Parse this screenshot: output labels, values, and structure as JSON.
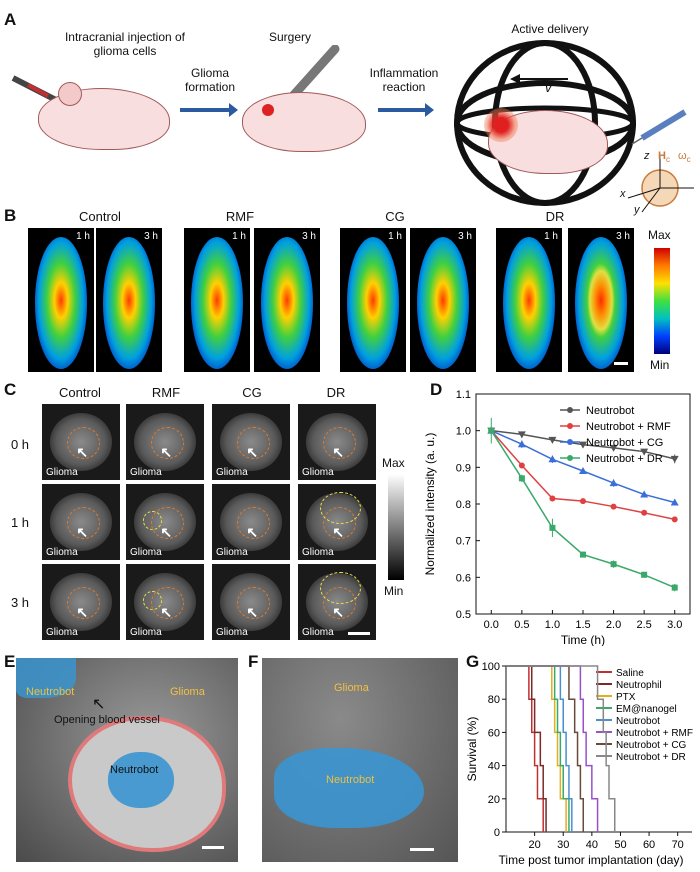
{
  "panel_labels": {
    "a": "A",
    "b": "B",
    "c": "C",
    "d": "D",
    "e": "E",
    "f": "F",
    "g": "G"
  },
  "panel_a": {
    "step1": "Intracranial injection of glioma cells",
    "arrow1": "Glioma formation",
    "step2": "Surgery",
    "arrow2": "Inflammation reaction",
    "step3": "Active delivery",
    "velocity": "v",
    "field_h": "H",
    "field_sub": "c",
    "omega": "ω",
    "omega_sub": "c",
    "axis_x": "x",
    "axis_y": "y",
    "axis_z": "z"
  },
  "panel_b": {
    "groups": [
      "Control",
      "RMF",
      "CG",
      "DR"
    ],
    "times": [
      "1 h",
      "3 h"
    ],
    "colorbar_max": "Max",
    "colorbar_min": "Min"
  },
  "panel_c": {
    "groups": [
      "Control",
      "RMF",
      "CG",
      "DR"
    ],
    "rows": [
      "0 h",
      "1 h",
      "3 h"
    ],
    "cell_label": "Glioma",
    "colorbar_max": "Max",
    "colorbar_min": "Min"
  },
  "panel_e": {
    "label1": "Neutrobot",
    "label2": "Glioma",
    "label3": "Opening blood vessel",
    "label4": "Neutrobot"
  },
  "panel_f": {
    "label1": "Glioma",
    "label2": "Neutrobot"
  },
  "chart_data": [
    {
      "type": "line",
      "panel": "D",
      "xlabel": "Time (h)",
      "ylabel": "Normalized intensity (a. u.)",
      "xlim": [
        -0.25,
        3.25
      ],
      "ylim": [
        0.5,
        1.1
      ],
      "xticks": [
        0.0,
        0.5,
        1.0,
        1.5,
        2.0,
        2.5,
        3.0
      ],
      "yticks": [
        0.5,
        0.6,
        0.7,
        0.8,
        0.9,
        1.0,
        1.1
      ],
      "x": [
        0,
        0.5,
        1.0,
        1.5,
        2.0,
        2.5,
        3.0
      ],
      "legend_position": "top-right",
      "series": [
        {
          "name": "Neutrobot",
          "color": "#555555",
          "marker": "triangle-down",
          "values": [
            1.0,
            0.99,
            0.975,
            0.962,
            0.953,
            0.943,
            0.923
          ],
          "err": [
            0.005,
            0.005,
            0.005,
            0.005,
            0.005,
            0.006,
            0.012
          ]
        },
        {
          "name": "Neutrobot + RMF",
          "color": "#e04040",
          "marker": "circle",
          "values": [
            1.0,
            0.905,
            0.815,
            0.808,
            0.793,
            0.776,
            0.758
          ],
          "err": [
            0.01,
            0.008,
            0.008,
            0.006,
            0.006,
            0.006,
            0.005
          ]
        },
        {
          "name": "Neutrobot + CG",
          "color": "#3a6fd8",
          "marker": "triangle-up",
          "values": [
            1.0,
            0.963,
            0.922,
            0.89,
            0.857,
            0.826,
            0.804
          ],
          "err": [
            0.01,
            0.01,
            0.01,
            0.008,
            0.01,
            0.008,
            0.008
          ]
        },
        {
          "name": "Neutrobot + DR",
          "color": "#3aa86a",
          "marker": "square",
          "values": [
            1.0,
            0.87,
            0.735,
            0.662,
            0.636,
            0.607,
            0.572
          ],
          "err": [
            0.035,
            0.01,
            0.025,
            0.008,
            0.01,
            0.008,
            0.01
          ]
        }
      ]
    },
    {
      "type": "line",
      "panel": "G",
      "subtype": "kaplan-meier",
      "xlabel": "Time post tumor implantation (day)",
      "ylabel": "Survival (%)",
      "xlim": [
        10,
        75
      ],
      "ylim": [
        0,
        100
      ],
      "xticks": [
        20,
        30,
        40,
        50,
        60,
        70
      ],
      "yticks": [
        0,
        20,
        40,
        60,
        80,
        100
      ],
      "legend_position": "top-right",
      "series": [
        {
          "name": "Saline",
          "color": "#c03030",
          "steps": [
            [
              16,
              100
            ],
            [
              18,
              80
            ],
            [
              19,
              60
            ],
            [
              20,
              40
            ],
            [
              21,
              20
            ],
            [
              23,
              0
            ]
          ]
        },
        {
          "name": "Neutrophil",
          "color": "#7a2a2a",
          "steps": [
            [
              17,
              100
            ],
            [
              19,
              80
            ],
            [
              20,
              60
            ],
            [
              22,
              40
            ],
            [
              23,
              20
            ],
            [
              24,
              0
            ]
          ]
        },
        {
          "name": "PTX",
          "color": "#e0b020",
          "steps": [
            [
              24,
              100
            ],
            [
              26,
              80
            ],
            [
              27,
              60
            ],
            [
              28,
              40
            ],
            [
              29,
              20
            ],
            [
              31,
              0
            ]
          ]
        },
        {
          "name": "EM@nanogel",
          "color": "#3aa86a",
          "steps": [
            [
              25,
              100
            ],
            [
              27,
              80
            ],
            [
              28,
              60
            ],
            [
              29,
              40
            ],
            [
              30,
              20
            ],
            [
              32,
              0
            ]
          ]
        },
        {
          "name": "Neutrobot",
          "color": "#4a8fd0",
          "steps": [
            [
              27,
              100
            ],
            [
              29,
              80
            ],
            [
              30,
              60
            ],
            [
              31,
              40
            ],
            [
              32,
              20
            ],
            [
              33,
              0
            ]
          ]
        },
        {
          "name": "Neutrobot + RMF",
          "color": "#9a50c8",
          "steps": [
            [
              33,
              100
            ],
            [
              36,
              80
            ],
            [
              37,
              60
            ],
            [
              38,
              40
            ],
            [
              40,
              20
            ],
            [
              42,
              0
            ]
          ]
        },
        {
          "name": "Neutrobot + CG",
          "color": "#6a4a3a",
          "steps": [
            [
              30,
              100
            ],
            [
              32,
              80
            ],
            [
              34,
              60
            ],
            [
              35,
              40
            ],
            [
              36,
              20
            ],
            [
              37,
              0
            ]
          ]
        },
        {
          "name": "Neutrobot + DR",
          "color": "#888888",
          "steps": [
            [
              39,
              100
            ],
            [
              42,
              80
            ],
            [
              44,
              60
            ],
            [
              45,
              40
            ],
            [
              46,
              20
            ],
            [
              48,
              0
            ]
          ]
        }
      ]
    }
  ]
}
